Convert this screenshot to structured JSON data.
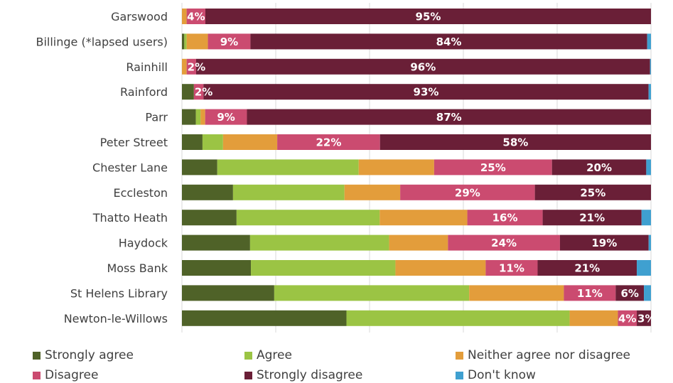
{
  "chart_data": {
    "type": "bar",
    "orientation": "horizontal",
    "stacked": true,
    "percent_stacked": true,
    "title": "",
    "xlabel": "",
    "ylabel": "",
    "xlim": [
      0,
      100
    ],
    "grid": true,
    "legend_position": "bottom",
    "categories": [
      "Garswood",
      "Billinge (*lapsed users)",
      "Rainhill",
      "Rainford",
      "Parr",
      "Peter Street",
      "Chester Lane",
      "Eccleston",
      "Thatto Heath",
      "Haydock",
      "Moss Bank",
      "St Helens Library",
      "Newton-le-Willows"
    ],
    "series": [
      {
        "name": "Strongly agree",
        "color": "#4f6228",
        "values": [
          0,
          0.5,
          0,
          2.5,
          3,
          4.4,
          7.5,
          11,
          11.6,
          14.6,
          14.6,
          19.6,
          34.8
        ]
      },
      {
        "name": "Agree",
        "color": "#9bc444",
        "values": [
          0,
          0.5,
          0,
          0,
          1,
          4.4,
          30,
          24,
          30.4,
          29.8,
          30.6,
          41.4,
          47.2
        ]
      },
      {
        "name": "Neither agree nor disagree",
        "color": "#e39d3b",
        "values": [
          1,
          4.5,
          1,
          0,
          1,
          11.6,
          16,
          12,
          18.6,
          12.6,
          19.1,
          20.1,
          10.2
        ]
      },
      {
        "name": "Disagree",
        "color": "#cb4b70",
        "values": [
          4,
          9,
          2,
          2,
          9,
          22,
          25,
          29,
          16,
          24,
          11,
          11,
          4
        ]
      },
      {
        "name": "Strongly disagree",
        "color": "#6a1f37",
        "values": [
          95,
          84,
          96,
          93,
          87,
          58,
          20,
          25,
          21,
          19,
          21,
          6,
          3
        ]
      },
      {
        "name": "Don't know",
        "color": "#3fa0d0",
        "values": [
          0,
          0.8,
          0.2,
          0.5,
          0,
          0,
          1,
          0,
          2,
          0.5,
          3,
          1.5,
          0
        ]
      }
    ],
    "data_labels": [
      [
        {
          "series": 3,
          "text": "4%"
        },
        {
          "series": 4,
          "text": "95%"
        }
      ],
      [
        {
          "series": 3,
          "text": "9%"
        },
        {
          "series": 4,
          "text": "84%"
        }
      ],
      [
        {
          "series": 3,
          "text": "2%"
        },
        {
          "series": 4,
          "text": "96%"
        }
      ],
      [
        {
          "series": 3,
          "text": "2%"
        },
        {
          "series": 4,
          "text": "93%"
        }
      ],
      [
        {
          "series": 3,
          "text": "9%"
        },
        {
          "series": 4,
          "text": "87%"
        }
      ],
      [
        {
          "series": 3,
          "text": "22%"
        },
        {
          "series": 4,
          "text": "58%"
        }
      ],
      [
        {
          "series": 3,
          "text": "25%"
        },
        {
          "series": 4,
          "text": "20%"
        }
      ],
      [
        {
          "series": 3,
          "text": "29%"
        },
        {
          "series": 4,
          "text": "25%"
        }
      ],
      [
        {
          "series": 3,
          "text": "16%"
        },
        {
          "series": 4,
          "text": "21%"
        }
      ],
      [
        {
          "series": 3,
          "text": "24%"
        },
        {
          "series": 4,
          "text": "19%"
        }
      ],
      [
        {
          "series": 3,
          "text": "11%"
        },
        {
          "series": 4,
          "text": "21%"
        }
      ],
      [
        {
          "series": 3,
          "text": "11%"
        },
        {
          "series": 4,
          "text": "6%"
        }
      ],
      [
        {
          "series": 3,
          "text": "4%"
        },
        {
          "series": 4,
          "text": "3%"
        }
      ]
    ]
  },
  "legend": {
    "items": [
      {
        "label": "Strongly agree",
        "color": "#4f6228"
      },
      {
        "label": "Agree",
        "color": "#9bc444"
      },
      {
        "label": "Neither agree nor disagree",
        "color": "#e39d3b"
      },
      {
        "label": "Disagree",
        "color": "#cb4b70"
      },
      {
        "label": "Strongly disagree",
        "color": "#6a1f37"
      },
      {
        "label": "Don't know",
        "color": "#3fa0d0"
      }
    ]
  }
}
